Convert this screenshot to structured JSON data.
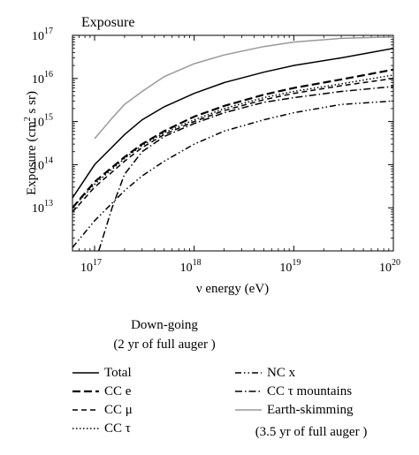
{
  "chart_data": {
    "type": "line",
    "title": "Exposure",
    "xlabel": "ν energy (eV)",
    "ylabel_parts": {
      "base": "Exposure (cm",
      "sup": "2",
      "rest": " s sr)"
    },
    "x_scale": "log",
    "y_scale": "log",
    "xlim": [
      6e+16,
      1e+20
    ],
    "ylim": [
      1000000000000.0,
      1e+17
    ],
    "x_ticks": [
      {
        "value": 1e+17,
        "mantissa": "10",
        "exp": "17"
      },
      {
        "value": 1e+18,
        "mantissa": "10",
        "exp": "18"
      },
      {
        "value": 1e+19,
        "mantissa": "10",
        "exp": "19"
      },
      {
        "value": 1e+20,
        "mantissa": "10",
        "exp": "20"
      }
    ],
    "y_ticks": [
      {
        "value": 10000000000000.0,
        "mantissa": "10",
        "exp": "13"
      },
      {
        "value": 100000000000000.0,
        "mantissa": "10",
        "exp": "14"
      },
      {
        "value": 1000000000000000.0,
        "mantissa": "10",
        "exp": "15"
      },
      {
        "value": 1e+16,
        "mantissa": "10",
        "exp": "16"
      },
      {
        "value": 1e+17,
        "mantissa": "10",
        "exp": "17"
      }
    ],
    "grid": false,
    "legend_heading": [
      "Down-going",
      "(2 yr of full auger )"
    ],
    "legend_footer": "(3.5 yr of full auger )",
    "series": [
      {
        "name": "Total",
        "style": "solid",
        "color": "#000000",
        "x": [
          6e+16,
          1e+17,
          2e+17,
          3e+17,
          5e+17,
          1e+18,
          2e+18,
          5e+18,
          1e+19,
          3e+19,
          1e+20
        ],
        "y": [
          17000000000000.0,
          100000000000000.0,
          500000000000000.0,
          1100000000000000.0,
          2200000000000000.0,
          4500000000000000.0,
          8000000000000000.0,
          1.4e+16,
          2e+16,
          3e+16,
          5e+16
        ]
      },
      {
        "name": "CC e",
        "style": "dashed-long",
        "color": "#000000",
        "x": [
          6e+16,
          1e+17,
          2e+17,
          3e+17,
          5e+17,
          1e+18,
          2e+18,
          5e+18,
          1e+19,
          3e+19,
          1e+20
        ],
        "y": [
          10000000000000.0,
          40000000000000.0,
          150000000000000.0,
          300000000000000.0,
          600000000000000.0,
          1300000000000000.0,
          2300000000000000.0,
          4200000000000000.0,
          6000000000000000.0,
          9500000000000000.0,
          1.6e+16
        ]
      },
      {
        "name": "CC μ",
        "style": "dashed",
        "color": "#000000",
        "x": [
          6e+16,
          1e+17,
          2e+17,
          3e+17,
          5e+17,
          1e+18,
          2e+18,
          5e+18,
          1e+19,
          3e+19,
          1e+20
        ],
        "y": [
          8000000000000.0,
          30000000000000.0,
          120000000000000.0,
          250000000000000.0,
          500000000000000.0,
          1000000000000000.0,
          1800000000000000.0,
          3200000000000000.0,
          4500000000000000.0,
          6800000000000000.0,
          1e+16
        ]
      },
      {
        "name": "CC τ",
        "style": "dotted",
        "color": "#000000",
        "x": [
          6e+16,
          1e+17,
          2e+17,
          3e+17,
          5e+17,
          1e+18,
          2e+18,
          5e+18,
          1e+19,
          3e+19,
          1e+20
        ],
        "y": [
          10000000000000.0,
          35000000000000.0,
          140000000000000.0,
          280000000000000.0,
          550000000000000.0,
          1100000000000000.0,
          2000000000000000.0,
          3600000000000000.0,
          5000000000000000.0,
          7500000000000000.0,
          1.2e+16
        ]
      },
      {
        "name": "NC x",
        "style": "dash-dot-dot",
        "color": "#000000",
        "x": [
          6e+16,
          1e+17,
          2e+17,
          3e+17,
          5e+17,
          1e+18,
          2e+18,
          5e+18,
          1e+19,
          3e+19,
          1e+20
        ],
        "y": [
          1200000000000.0,
          5000000000000.0,
          25000000000000.0,
          55000000000000.0,
          120000000000000.0,
          300000000000000.0,
          600000000000000.0,
          1100000000000000.0,
          1600000000000000.0,
          2500000000000000.0,
          3000000000000000.0
        ]
      },
      {
        "name": "CC τ mountains",
        "style": "dash-dot",
        "color": "#000000",
        "x": [
          1.1e+17,
          1.5e+17,
          2e+17,
          3e+17,
          5e+17,
          1e+18,
          2e+18,
          5e+18,
          1e+19,
          3e+19,
          1e+20
        ],
        "y": [
          1000000000000.0,
          10000000000000.0,
          60000000000000.0,
          200000000000000.0,
          450000000000000.0,
          900000000000000.0,
          1600000000000000.0,
          2800000000000000.0,
          3600000000000000.0,
          5000000000000000.0,
          6500000000000000.0
        ]
      },
      {
        "name": "Earth-skimming",
        "style": "solid",
        "color": "#999999",
        "x": [
          1e+17,
          1.5e+17,
          2e+17,
          3e+17,
          5e+17,
          1e+18,
          2e+18,
          5e+18,
          1e+19,
          3e+19,
          1e+20
        ],
        "y": [
          400000000000000.0,
          1200000000000000.0,
          2500000000000000.0,
          5000000000000000.0,
          1.1e+16,
          2.2e+16,
          3.5e+16,
          5.5e+16,
          7e+16,
          8.5e+16,
          9.2e+16
        ]
      }
    ]
  }
}
